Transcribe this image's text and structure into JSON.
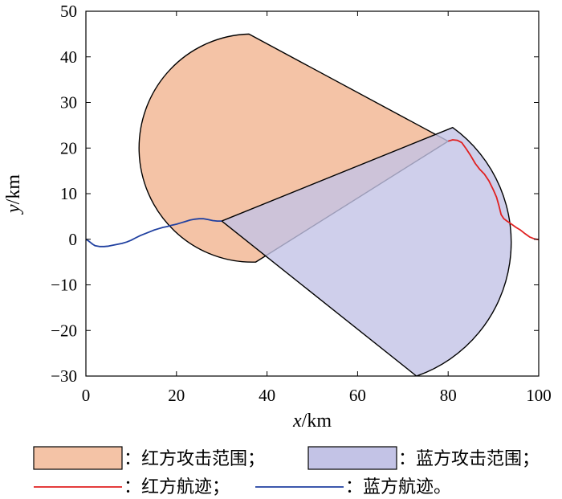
{
  "chart_data": {
    "type": "line",
    "xlim": [
      0,
      100
    ],
    "ylim": [
      -30,
      50
    ],
    "xticks": [
      0,
      20,
      40,
      60,
      80,
      100
    ],
    "yticks": [
      -30,
      -20,
      -10,
      0,
      10,
      20,
      30,
      40,
      50
    ],
    "x_tick_labels": [
      "0",
      "20",
      "40",
      "60",
      "80",
      "100"
    ],
    "y_tick_labels": [
      "−30",
      "−20",
      "−10",
      "0",
      "10",
      "20",
      "30",
      "40",
      "50"
    ],
    "xlabel": {
      "var": "x",
      "unit": "/km"
    },
    "ylabel": {
      "var": "y",
      "unit": "/km"
    },
    "grid": false,
    "legend_position": "bottom",
    "regions": [
      {
        "name": "：红方攻击范围；",
        "color": "#f4c3a6",
        "apex": [
          80,
          21.5
        ],
        "edge_start": [
          36,
          45
        ],
        "edge_end": [
          37.5,
          -5
        ],
        "arc_center": [
          36,
          20
        ],
        "arc_radius": 25
      },
      {
        "name": "：蓝方攻击范围；",
        "color": "#c3c3e6",
        "apex": [
          30,
          4
        ],
        "edge_start": [
          81,
          24.5
        ],
        "edge_end": [
          73,
          -30
        ],
        "arc_center": [
          76,
          1
        ],
        "arc_radius": 31
      }
    ],
    "series": [
      {
        "name": "：红方航迹；",
        "color": "#e02020",
        "x": [
          80,
          81,
          82,
          83,
          84,
          85,
          86,
          87,
          88,
          89,
          90,
          90.7,
          91.2,
          91.7,
          92.3,
          93,
          94,
          95,
          96,
          97,
          98,
          99,
          100
        ],
        "y": [
          21.5,
          21.8,
          21.7,
          21.2,
          19.8,
          18.3,
          16.6,
          15.3,
          14.3,
          12.8,
          10.8,
          9.2,
          7.4,
          5.4,
          4.5,
          4.0,
          3.3,
          2.6,
          2.0,
          1.2,
          0.5,
          0.1,
          -0.1
        ]
      },
      {
        "name": "：蓝方航迹。",
        "color": "#2040a0",
        "x": [
          0,
          0.5,
          1,
          1.5,
          2,
          3,
          4,
          5,
          6,
          7,
          8,
          9,
          10,
          11,
          12,
          13,
          14,
          15,
          16,
          17,
          18,
          19,
          20,
          21,
          22,
          23,
          24,
          25,
          26,
          27,
          28,
          29,
          30
        ],
        "y": [
          0,
          -0.3,
          -0.7,
          -1.1,
          -1.4,
          -1.6,
          -1.6,
          -1.5,
          -1.3,
          -1.1,
          -0.9,
          -0.6,
          -0.2,
          0.3,
          0.8,
          1.2,
          1.6,
          2.0,
          2.3,
          2.6,
          2.8,
          3.1,
          3.3,
          3.6,
          3.9,
          4.2,
          4.4,
          4.5,
          4.5,
          4.3,
          4.1,
          4.0,
          4.0
        ]
      }
    ]
  }
}
